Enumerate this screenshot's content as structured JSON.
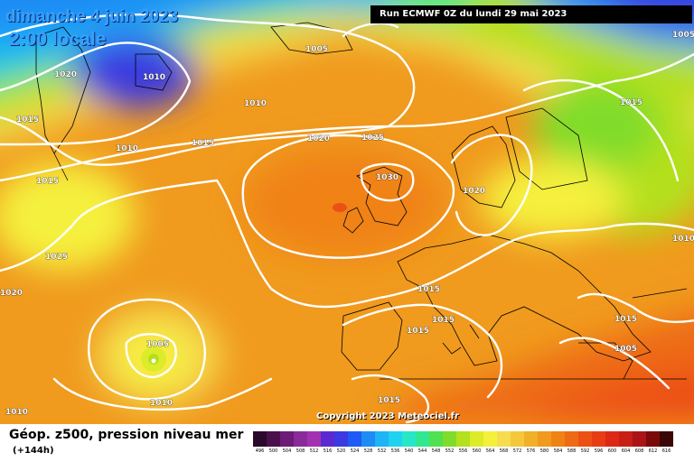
{
  "header": {
    "date": "dimanche 4 juin 2023",
    "time": "2:00 locale",
    "run": "Run ECMWF 0Z du lundi 29 mai 2023"
  },
  "copyright": "Copyright 2023 Meteociel.fr",
  "footer": {
    "parameter": "Géop. z500, pression niveau mer",
    "lead_time": "(+144h)"
  },
  "legend": {
    "values": [
      "496",
      "500",
      "504",
      "508",
      "512",
      "516",
      "520",
      "524",
      "528",
      "532",
      "536",
      "540",
      "544",
      "548",
      "552",
      "556",
      "560",
      "564",
      "568",
      "572",
      "576",
      "580",
      "584",
      "588",
      "592",
      "596",
      "600",
      "604",
      "608",
      "612",
      "616"
    ],
    "colors": [
      "#2a0a2a",
      "#4b0f4b",
      "#6e1a78",
      "#8a2a9a",
      "#a232b0",
      "#5a2ad0",
      "#3a3ae0",
      "#1e5af5",
      "#1e8cf5",
      "#1eb4f5",
      "#20d2f0",
      "#28e6c8",
      "#30e890",
      "#50e050",
      "#80dc2a",
      "#b4e01e",
      "#dcec28",
      "#f5f03c",
      "#f5dc50",
      "#f5c83c",
      "#f0b028",
      "#f09a1e",
      "#f08214",
      "#ee6a14",
      "#ec5014",
      "#e83c14",
      "#dc2814",
      "#c81e14",
      "#aa1414",
      "#7a0a0a",
      "#3a0606"
    ]
  },
  "isobars": [
    "1005",
    "1020",
    "1010",
    "1005",
    "1010",
    "1015",
    "1015",
    "1010",
    "1020",
    "1025",
    "1015",
    "1030",
    "1020",
    "1015",
    "1025",
    "1010",
    "1020",
    "1015",
    "1015",
    "1015",
    "1015",
    "1005",
    "1010",
    "1010",
    "1015",
    "1005"
  ]
}
